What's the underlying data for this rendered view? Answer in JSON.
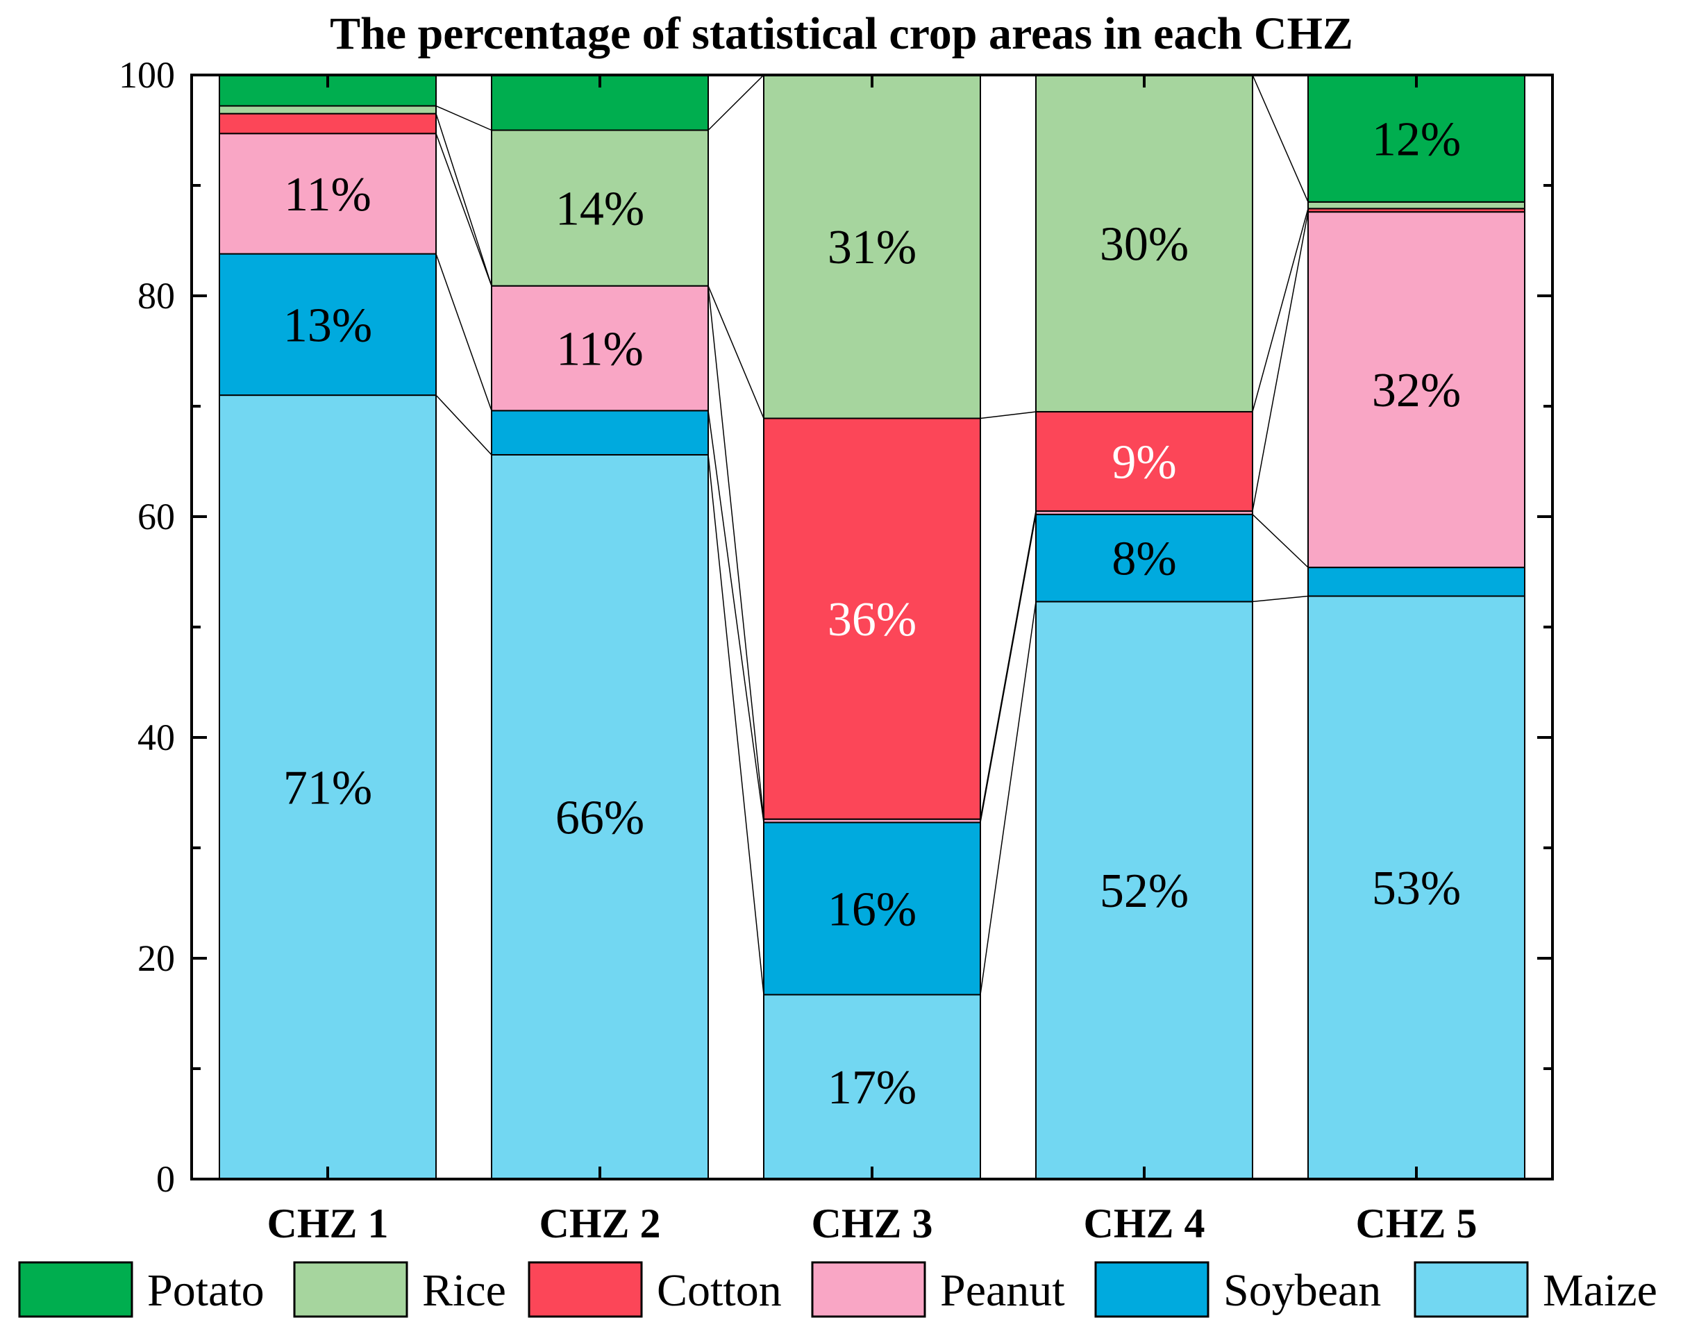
{
  "chart_data": {
    "type": "stacked-bar",
    "title": "The percentage of statistical crop areas in each CHZ",
    "xlabel": "",
    "ylabel": "",
    "ylim": [
      0,
      100
    ],
    "yticks": [
      0,
      20,
      40,
      60,
      80,
      100
    ],
    "categories": [
      "CHZ 1",
      "CHZ 2",
      "CHZ 3",
      "CHZ 4",
      "CHZ 5"
    ],
    "series": [
      {
        "name": "Maize",
        "color": "#72D7F2",
        "label_color": "#000000",
        "values": [
          71.0,
          65.6,
          16.7,
          52.3,
          52.8
        ],
        "labels": [
          "71%",
          "66%",
          "17%",
          "52%",
          "53%"
        ]
      },
      {
        "name": "Soybean",
        "color": "#00AADE",
        "label_color": "#000000",
        "values": [
          12.8,
          4.0,
          15.6,
          7.9,
          2.6
        ],
        "labels": [
          "13%",
          "",
          "16%",
          "8%",
          ""
        ]
      },
      {
        "name": "Peanut",
        "color": "#F9A6C5",
        "label_color": "#000000",
        "values": [
          10.9,
          11.3,
          0.3,
          0.3,
          32.2
        ],
        "labels": [
          "11%",
          "11%",
          "",
          "",
          "32%"
        ]
      },
      {
        "name": "Cotton",
        "color": "#FC4658",
        "label_color": "#ffffff",
        "values": [
          1.8,
          0.0,
          36.3,
          9.0,
          0.3
        ],
        "labels": [
          "",
          "",
          "36%",
          "9%",
          ""
        ]
      },
      {
        "name": "Rice",
        "color": "#A6D59E",
        "label_color": "#000000",
        "values": [
          0.7,
          14.1,
          31.1,
          30.5,
          0.6
        ],
        "labels": [
          "",
          "14%",
          "31%",
          "30%",
          ""
        ]
      },
      {
        "name": "Potato",
        "color": "#00AE4F",
        "label_color": "#000000",
        "values": [
          2.8,
          5.0,
          0.0,
          0.0,
          11.5
        ],
        "labels": [
          "",
          "",
          "",
          "",
          "12%"
        ]
      }
    ],
    "legend": {
      "placement": "bottom",
      "order": [
        "Potato",
        "Rice",
        "Cotton",
        "Peanut",
        "Soybean",
        "Maize"
      ]
    },
    "grid": false
  }
}
